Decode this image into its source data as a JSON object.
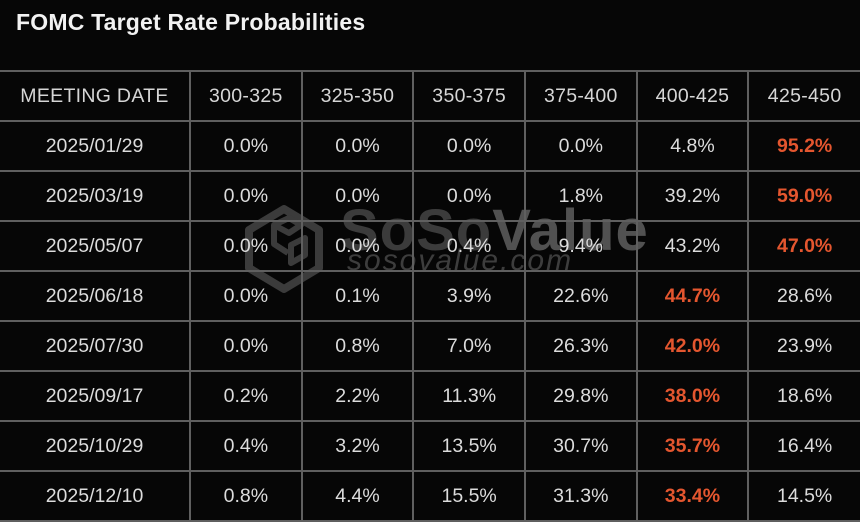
{
  "page": {
    "title": "FOMC Target Rate Probabilities"
  },
  "watermark": {
    "brand_first": "SoSo",
    "brand_second": "Value",
    "domain": "sosovalue.com"
  },
  "colors": {
    "background": "#060606",
    "grid_line": "#5f5f5f",
    "cell_text": "#dcdcdc",
    "title_text": "#f2f2f2",
    "highlight_text": "#e4562f",
    "watermark_dark": "#3b3b3b",
    "watermark_light": "#515151"
  },
  "chart_data": {
    "type": "table",
    "title": "FOMC Target Rate Probabilities",
    "columns": [
      "MEETING DATE",
      "300-325",
      "325-350",
      "350-375",
      "375-400",
      "400-425",
      "425-450"
    ],
    "rows": [
      {
        "meeting_date": "2025/01/29",
        "values": [
          "0.0%",
          "0.0%",
          "0.0%",
          "0.0%",
          "4.8%",
          "95.2%"
        ],
        "highlight_index": 5
      },
      {
        "meeting_date": "2025/03/19",
        "values": [
          "0.0%",
          "0.0%",
          "0.0%",
          "1.8%",
          "39.2%",
          "59.0%"
        ],
        "highlight_index": 5
      },
      {
        "meeting_date": "2025/05/07",
        "values": [
          "0.0%",
          "0.0%",
          "0.4%",
          "9.4%",
          "43.2%",
          "47.0%"
        ],
        "highlight_index": 5
      },
      {
        "meeting_date": "2025/06/18",
        "values": [
          "0.0%",
          "0.1%",
          "3.9%",
          "22.6%",
          "44.7%",
          "28.6%"
        ],
        "highlight_index": 4
      },
      {
        "meeting_date": "2025/07/30",
        "values": [
          "0.0%",
          "0.8%",
          "7.0%",
          "26.3%",
          "42.0%",
          "23.9%"
        ],
        "highlight_index": 4
      },
      {
        "meeting_date": "2025/09/17",
        "values": [
          "0.2%",
          "2.2%",
          "11.3%",
          "29.8%",
          "38.0%",
          "18.6%"
        ],
        "highlight_index": 4
      },
      {
        "meeting_date": "2025/10/29",
        "values": [
          "0.4%",
          "3.2%",
          "13.5%",
          "30.7%",
          "35.7%",
          "16.4%"
        ],
        "highlight_index": 4
      },
      {
        "meeting_date": "2025/12/10",
        "values": [
          "0.8%",
          "4.4%",
          "15.5%",
          "31.3%",
          "33.4%",
          "14.5%"
        ],
        "highlight_index": 4
      }
    ]
  }
}
